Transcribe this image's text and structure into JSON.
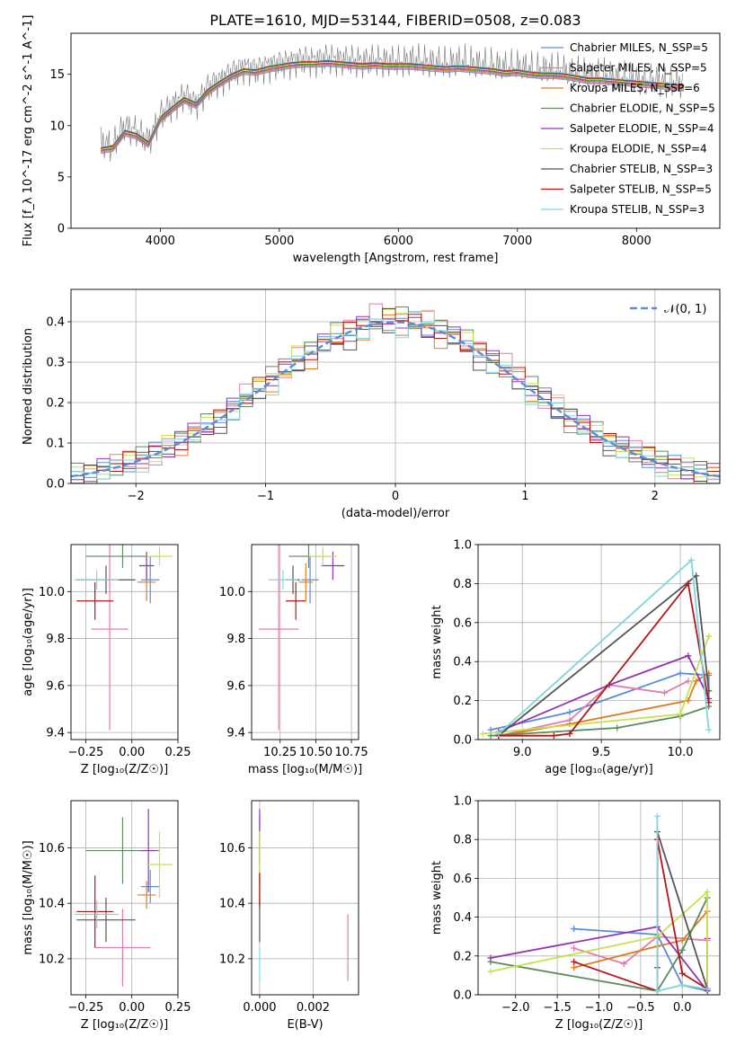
{
  "figure_title": "PLATE=1610, MJD=53144, FIBERID=0508, z=0.083",
  "series_colors": [
    "#5b8bd9",
    "#e07cae",
    "#e07a1f",
    "#5a8a5e",
    "#9333b0",
    "#c6e24a",
    "#555555",
    "#b01818",
    "#7fd6dd"
  ],
  "chart_data": [
    {
      "id": "spectrum",
      "type": "line",
      "xlabel": "wavelength [Angstrom, rest frame]",
      "ylabel": "Flux [f_λ 10^-17 erg cm^-2 s^-1 A^-1]",
      "xlim": [
        3250,
        8700
      ],
      "ylim": [
        0,
        19
      ],
      "xticks": [
        "4000",
        "5000",
        "6000",
        "7000",
        "8000"
      ],
      "yticks": [
        "0",
        "5",
        "10",
        "15"
      ],
      "grid": false,
      "legend_position": "right",
      "legend": [
        "Chabrier MILES, N_SSP=5",
        "Salpeter MILES, N_SSP=5",
        "Kroupa MILES, N_SSP=6",
        "Chabrier ELODIE, N_SSP=5",
        "Salpeter ELODIE, N_SSP=4",
        "Kroupa ELODIE, N_SSP=4",
        "Chabrier STELIB, N_SSP=3",
        "Salpeter STELIB, N_SSP=5",
        "Kroupa STELIB, N_SSP=3"
      ],
      "data_wavelength": [
        3500,
        3600,
        3700,
        3800,
        3900,
        4000,
        4100,
        4200,
        4300,
        4400,
        4500,
        4600,
        4700,
        4800,
        4900,
        5000,
        5100,
        5200,
        5300,
        5400,
        5500,
        5600,
        5700,
        5800,
        5900,
        6000,
        6100,
        6200,
        6300,
        6400,
        6500,
        6600,
        6700,
        6800,
        6900,
        7000,
        7100,
        7200,
        7300,
        7400,
        7500,
        7600,
        7700,
        7800,
        7900,
        8000,
        8100,
        8200,
        8300,
        8400
      ],
      "data_flux": [
        8.5,
        8.0,
        10.0,
        9.5,
        8.5,
        11.0,
        12.0,
        13.0,
        12.2,
        13.8,
        14.5,
        15.2,
        15.8,
        15.5,
        15.9,
        16.1,
        16.3,
        16.5,
        16.4,
        16.6,
        16.5,
        16.4,
        16.3,
        16.4,
        16.3,
        16.2,
        16.4,
        16.3,
        16.1,
        16.0,
        16.2,
        16.1,
        15.9,
        15.8,
        15.6,
        15.7,
        15.5,
        15.3,
        15.4,
        15.2,
        15.0,
        14.8,
        14.9,
        14.7,
        14.6,
        14.5,
        14.4,
        14.3,
        14.2,
        14.1
      ],
      "model_flux": [
        7.6,
        7.8,
        9.3,
        9.0,
        8.2,
        10.6,
        11.6,
        12.5,
        12.0,
        13.3,
        14.1,
        14.8,
        15.3,
        15.2,
        15.5,
        15.7,
        15.9,
        16.0,
        16.0,
        16.1,
        16.0,
        15.9,
        15.8,
        15.9,
        15.8,
        15.8,
        15.8,
        15.7,
        15.6,
        15.5,
        15.6,
        15.5,
        15.4,
        15.3,
        15.1,
        15.2,
        15.0,
        14.9,
        14.9,
        14.8,
        14.6,
        14.4,
        14.4,
        14.3,
        14.2,
        14.1,
        14.0,
        13.9,
        13.8,
        13.7
      ]
    },
    {
      "id": "residuals",
      "type": "histogram",
      "xlabel": "(data-model)/error",
      "ylabel": "Normed distribution",
      "xlim": [
        -2.5,
        2.5
      ],
      "ylim": [
        0,
        0.48
      ],
      "xticks": [
        "−2",
        "−1",
        "0",
        "1",
        "2"
      ],
      "yticks": [
        "0.0",
        "0.1",
        "0.2",
        "0.3",
        "0.4"
      ],
      "grid": true,
      "legend_position": "top-right",
      "legend": [
        "𝒩(0, 1)"
      ],
      "bin_width": 0.1,
      "bin_start": -2.5,
      "variants": [
        {
          "scale": 1.0,
          "noise": [
            0.01,
            -0.01,
            0.02,
            0.0,
            -0.02,
            0.01,
            0.03,
            -0.02,
            0.0,
            0.02
          ]
        },
        {
          "scale": 1.05,
          "noise": [
            -0.02,
            0.01,
            0.0,
            0.03,
            -0.01,
            0.0,
            -0.03,
            0.02,
            0.01,
            -0.01
          ]
        },
        {
          "scale": 0.97,
          "noise": [
            0.0,
            0.02,
            -0.02,
            0.01,
            0.03,
            -0.02,
            0.0,
            0.01,
            -0.03,
            0.02
          ]
        },
        {
          "scale": 1.02,
          "noise": [
            0.03,
            0.0,
            0.01,
            -0.02,
            0.0,
            0.03,
            -0.01,
            0.0,
            0.02,
            -0.02
          ]
        },
        {
          "scale": 0.99,
          "noise": [
            -0.01,
            -0.02,
            0.03,
            0.01,
            0.0,
            -0.01,
            0.02,
            -0.02,
            0.0,
            0.03
          ]
        },
        {
          "scale": 1.03,
          "noise": [
            0.02,
            0.01,
            -0.01,
            0.0,
            0.02,
            0.01,
            -0.02,
            0.03,
            -0.01,
            0.0
          ]
        },
        {
          "scale": 0.96,
          "noise": [
            0.0,
            -0.03,
            0.01,
            0.02,
            -0.01,
            0.02,
            0.01,
            -0.01,
            0.03,
            0.0
          ]
        },
        {
          "scale": 1.01,
          "noise": [
            -0.02,
            0.02,
            0.0,
            -0.01,
            0.03,
            0.0,
            0.02,
            0.0,
            -0.02,
            0.01
          ]
        },
        {
          "scale": 0.98,
          "noise": [
            0.01,
            0.0,
            -0.02,
            0.02,
            0.01,
            -0.03,
            0.0,
            0.02,
            0.01,
            -0.01
          ]
        }
      ]
    },
    {
      "id": "age-metallicity",
      "type": "errorbar",
      "xlabel": "Z [log₁₀(Z/Z☉)]",
      "ylabel": "age  [log₁₀(age/yr)]",
      "xlim": [
        -0.33,
        0.25
      ],
      "ylim": [
        9.37,
        10.2
      ],
      "xticks": [
        "−0.25",
        "0.00",
        "0.25"
      ],
      "yticks": [
        "9.4",
        "9.6",
        "9.8",
        "10.0"
      ],
      "points": [
        {
          "x": 0.1,
          "xerr": 0.05,
          "y": 10.05,
          "yerr": 0.1
        },
        {
          "x": -0.12,
          "xerr": 0.1,
          "y": 9.84,
          "yerr": 0.43
        },
        {
          "x": 0.08,
          "xerr": 0.05,
          "y": 10.04,
          "yerr": 0.08
        },
        {
          "x": -0.05,
          "xerr": 0.2,
          "y": 10.15,
          "yerr": 0.05
        },
        {
          "x": 0.08,
          "xerr": 0.04,
          "y": 10.11,
          "yerr": 0.06
        },
        {
          "x": 0.15,
          "xerr": 0.07,
          "y": 10.15,
          "yerr": 0.04
        },
        {
          "x": -0.14,
          "xerr": 0.16,
          "y": 10.05,
          "yerr": 0.06
        },
        {
          "x": -0.2,
          "xerr": 0.1,
          "y": 9.96,
          "yerr": 0.08
        },
        {
          "x": -0.19,
          "xerr": 0.12,
          "y": 10.05,
          "yerr": 0.04
        }
      ]
    },
    {
      "id": "age-mass",
      "type": "errorbar",
      "xlabel": "mass [log₁₀(M/M☉)]",
      "ylabel": "",
      "xlim": [
        10.05,
        10.8
      ],
      "ylim": [
        9.37,
        10.2
      ],
      "xticks": [
        "10.25",
        "10.50",
        "10.75"
      ],
      "yticks": [
        "9.4",
        "9.6",
        "9.8",
        "10.0"
      ],
      "points": [
        {
          "x": 10.46,
          "xerr": 0.06,
          "y": 10.05,
          "yerr": 0.1
        },
        {
          "x": 10.24,
          "xerr": 0.14,
          "y": 9.84,
          "yerr": 0.43
        },
        {
          "x": 10.43,
          "xerr": 0.05,
          "y": 10.04,
          "yerr": 0.08
        },
        {
          "x": 10.45,
          "xerr": 0.14,
          "y": 10.15,
          "yerr": 0.05
        },
        {
          "x": 10.62,
          "xerr": 0.08,
          "y": 10.11,
          "yerr": 0.06
        },
        {
          "x": 10.55,
          "xerr": 0.1,
          "y": 10.15,
          "yerr": 0.04
        },
        {
          "x": 10.34,
          "xerr": 0.05,
          "y": 10.05,
          "yerr": 0.06
        },
        {
          "x": 10.36,
          "xerr": 0.07,
          "y": 9.96,
          "yerr": 0.08
        },
        {
          "x": 10.27,
          "xerr": 0.1,
          "y": 10.05,
          "yerr": 0.04
        }
      ]
    },
    {
      "id": "weight-age",
      "type": "line",
      "xlabel": "age  [log₁₀(age/yr)]",
      "ylabel": "mass weight",
      "xlim": [
        8.72,
        10.25
      ],
      "ylim": [
        0,
        1.0
      ],
      "xticks": [
        "9.0",
        "9.5",
        "10.0"
      ],
      "yticks": [
        "0.0",
        "0.2",
        "0.4",
        "0.6",
        "0.8",
        "1.0"
      ],
      "series": [
        {
          "x": [
            8.8,
            9.3,
            10.0,
            10.18,
            10.18
          ],
          "y": [
            0.05,
            0.14,
            0.34,
            0.33,
            0.19
          ]
        },
        {
          "x": [
            8.85,
            9.3,
            9.55,
            9.9,
            10.05
          ],
          "y": [
            0.02,
            0.1,
            0.28,
            0.24,
            0.3
          ]
        },
        {
          "x": [
            8.85,
            9.3,
            10.05,
            10.1,
            10.18
          ],
          "y": [
            0.02,
            0.08,
            0.2,
            0.3,
            0.34
          ]
        },
        {
          "x": [
            8.8,
            9.6,
            10.0,
            10.18
          ],
          "y": [
            0.02,
            0.06,
            0.12,
            0.17
          ]
        },
        {
          "x": [
            8.85,
            9.55,
            10.05,
            10.18
          ],
          "y": [
            0.04,
            0.28,
            0.43,
            0.21
          ]
        },
        {
          "x": [
            8.75,
            10.0,
            10.18,
            10.18
          ],
          "y": [
            0.03,
            0.13,
            0.53,
            0.53
          ]
        },
        {
          "x": [
            8.85,
            10.1,
            10.18
          ],
          "y": [
            0.02,
            0.84,
            0.25
          ]
        },
        {
          "x": [
            8.85,
            9.2,
            9.3,
            10.05,
            10.18
          ],
          "y": [
            0.02,
            0.02,
            0.03,
            0.8,
            0.19
          ]
        },
        {
          "x": [
            8.85,
            10.07,
            10.18
          ],
          "y": [
            0.03,
            0.92,
            0.05
          ]
        }
      ]
    },
    {
      "id": "mass-metallicity",
      "type": "errorbar",
      "xlabel": "Z [log₁₀(Z/Z☉)]",
      "ylabel": "mass [log₁₀(M/M☉)]",
      "xlim": [
        -0.33,
        0.25
      ],
      "ylim": [
        10.07,
        10.77
      ],
      "xticks": [
        "−0.25",
        "0.00",
        "0.25"
      ],
      "yticks": [
        "10.2",
        "10.4",
        "10.6"
      ],
      "points": [
        {
          "x": 0.1,
          "xerr": 0.05,
          "y": 10.46,
          "yerr": 0.06
        },
        {
          "x": -0.05,
          "xerr": 0.15,
          "y": 10.24,
          "yerr": 0.14
        },
        {
          "x": 0.08,
          "xerr": 0.05,
          "y": 10.43,
          "yerr": 0.05
        },
        {
          "x": -0.05,
          "xerr": 0.2,
          "y": 10.59,
          "yerr": 0.12
        },
        {
          "x": 0.09,
          "xerr": 0.04,
          "y": 10.59,
          "yerr": 0.15
        },
        {
          "x": 0.15,
          "xerr": 0.07,
          "y": 10.54,
          "yerr": 0.12
        },
        {
          "x": -0.14,
          "xerr": 0.16,
          "y": 10.34,
          "yerr": 0.08
        },
        {
          "x": -0.2,
          "xerr": 0.1,
          "y": 10.37,
          "yerr": 0.13
        },
        {
          "x": -0.19,
          "xerr": 0.12,
          "y": 10.36,
          "yerr": 0.05
        }
      ]
    },
    {
      "id": "mass-ebv",
      "type": "errorbar",
      "xlabel": "E(B-V)",
      "ylabel": "",
      "xlim": [
        -0.0003,
        0.0037
      ],
      "ylim": [
        10.07,
        10.77
      ],
      "xticks": [
        "0.000",
        "0.002"
      ],
      "yticks": [
        "10.2",
        "10.4",
        "10.6"
      ],
      "points": [
        {
          "x": 0.0,
          "xerr": 0.0,
          "y": 10.46,
          "yerr": 0.06
        },
        {
          "x": 0.0033,
          "xerr": 0.0,
          "y": 10.24,
          "yerr": 0.12
        },
        {
          "x": 0.0,
          "xerr": 0.0,
          "y": 10.43,
          "yerr": 0.05
        },
        {
          "x": 0.0,
          "xerr": 0.0,
          "y": 10.59,
          "yerr": 0.12
        },
        {
          "x": 0.0,
          "xerr": 0.0,
          "y": 10.64,
          "yerr": 0.1
        },
        {
          "x": 0.0,
          "xerr": 0.0,
          "y": 10.54,
          "yerr": 0.12
        },
        {
          "x": 0.0,
          "xerr": 0.0,
          "y": 10.34,
          "yerr": 0.08
        },
        {
          "x": 0.0,
          "xerr": 0.0,
          "y": 10.45,
          "yerr": 0.06
        },
        {
          "x": 0.0,
          "xerr": 0.0,
          "y": 10.18,
          "yerr": 0.06
        }
      ]
    },
    {
      "id": "weight-metallicity",
      "type": "line",
      "xlabel": "Z [log₁₀(Z/Z☉)]",
      "ylabel": "mass weight",
      "xlim": [
        -2.45,
        0.45
      ],
      "ylim": [
        0,
        1.0
      ],
      "xticks": [
        "−2.0",
        "−1.5",
        "−1.0",
        "−0.5",
        "0.0"
      ],
      "yticks": [
        "0.0",
        "0.2",
        "0.4",
        "0.6",
        "0.8",
        "1.0"
      ],
      "series": [
        {
          "x": [
            -1.3,
            -0.3,
            0.0,
            0.3,
            0.3
          ],
          "y": [
            0.34,
            0.31,
            0.05,
            0.02,
            0.03
          ]
        },
        {
          "x": [
            -1.3,
            -0.7,
            -0.3,
            0.3,
            0.3
          ],
          "y": [
            0.24,
            0.16,
            0.3,
            0.28,
            0.02
          ]
        },
        {
          "x": [
            -1.3,
            -0.3,
            0.0,
            0.3,
            0.3
          ],
          "y": [
            0.14,
            0.25,
            0.28,
            0.43,
            0.03
          ]
        },
        {
          "x": [
            -2.3,
            -0.3,
            0.0,
            0.3
          ],
          "y": [
            0.17,
            0.02,
            0.23,
            0.5
          ]
        },
        {
          "x": [
            -2.3,
            -0.3,
            0.3,
            0.3
          ],
          "y": [
            0.19,
            0.35,
            0.02,
            0.29
          ]
        },
        {
          "x": [
            -2.3,
            -0.3,
            0.3,
            0.3
          ],
          "y": [
            0.12,
            0.3,
            0.53,
            0.03
          ]
        },
        {
          "x": [
            -0.3,
            -0.3,
            0.3
          ],
          "y": [
            0.14,
            0.84,
            0.03
          ]
        },
        {
          "x": [
            -1.3,
            -0.3,
            -0.3,
            0.0,
            0.3
          ],
          "y": [
            0.17,
            0.02,
            0.8,
            0.11,
            0.03
          ]
        },
        {
          "x": [
            -0.3,
            -0.3,
            0.0,
            0.3
          ],
          "y": [
            0.92,
            0.02,
            0.05,
            0.03
          ]
        }
      ]
    }
  ]
}
